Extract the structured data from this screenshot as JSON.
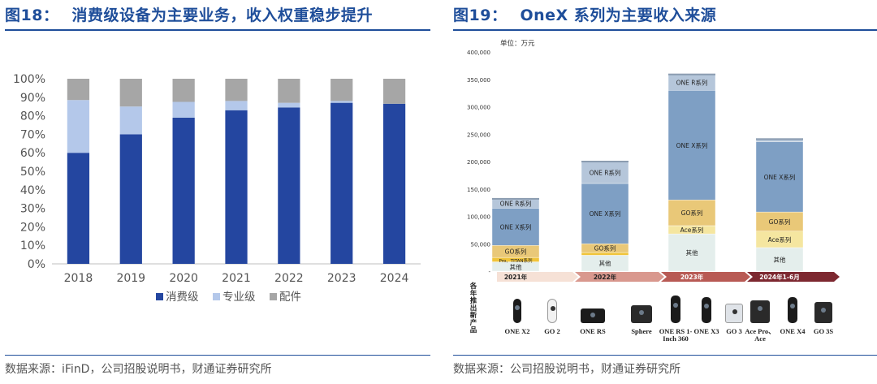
{
  "left": {
    "fig_num": "图18：",
    "title": "消费级设备为主要业务，收入权重稳步提升",
    "source": "数据来源：iFinD，公司招股说明书，财通证券研究所"
  },
  "right": {
    "fig_num": "图19：",
    "title": "OneX 系列为主要收入来源",
    "source": "数据来源：公司招股说明书，财通证券研究所",
    "unit_label": "单位：万元",
    "new_products_label": "各年推出新产品",
    "products": [
      {
        "name": "ONE X2",
        "icon": "camera-one-x2-icon"
      },
      {
        "name": "GO 2",
        "icon": "camera-go2-icon"
      },
      {
        "name": "ONE RS",
        "icon": "camera-one-rs-icon"
      },
      {
        "name": "Sphere",
        "icon": "camera-sphere-icon"
      },
      {
        "name": "ONE RS 1-Inch 360",
        "icon": "camera-one-rs-1inch-icon"
      },
      {
        "name": "ONE X3",
        "icon": "camera-one-x3-icon"
      },
      {
        "name": "GO 3",
        "icon": "camera-go3-icon"
      },
      {
        "name": "Ace Pro、Ace",
        "icon": "camera-ace-pro-icon"
      },
      {
        "name": "ONE X4",
        "icon": "camera-one-x4-icon"
      },
      {
        "name": "GO 3S",
        "icon": "camera-go3s-icon"
      }
    ]
  },
  "chart_data": [
    {
      "type": "bar",
      "stacked": true,
      "categories": [
        "2018",
        "2019",
        "2020",
        "2021",
        "2022",
        "2023",
        "2024"
      ],
      "series": [
        {
          "name": "消费级",
          "color": "#2446a0",
          "values": [
            0.6,
            0.7,
            0.79,
            0.83,
            0.845,
            0.87,
            0.865
          ]
        },
        {
          "name": "专业级",
          "color": "#b4c8ea",
          "values": [
            0.285,
            0.15,
            0.085,
            0.05,
            0.025,
            0.01,
            0.0
          ]
        },
        {
          "name": "配件",
          "color": "#a6a6a6",
          "values": [
            0.115,
            0.15,
            0.125,
            0.12,
            0.13,
            0.12,
            0.135
          ]
        }
      ],
      "yticks": [
        "0%",
        "10%",
        "20%",
        "30%",
        "40%",
        "50%",
        "60%",
        "70%",
        "80%",
        "90%",
        "100%"
      ],
      "ylim": [
        0,
        1
      ],
      "legend": "bottom"
    },
    {
      "type": "bar",
      "stacked": true,
      "categories": [
        "2021年",
        "2022年",
        "2023年",
        "2024年1-6月"
      ],
      "series": [
        {
          "name": "其他",
          "color": "#e4eeec",
          "values": [
            17000,
            29000,
            68000,
            43000
          ]
        },
        {
          "name": "Pro、TITAN系列",
          "color": "#f0c43a",
          "values": [
            8000,
            5000,
            0,
            0
          ]
        },
        {
          "name": "Ace系列",
          "color": "#f5e6a0",
          "values": [
            0,
            0,
            15000,
            30000
          ]
        },
        {
          "name": "GO系列",
          "color": "#e9c878",
          "values": [
            22000,
            16000,
            47000,
            35000
          ]
        },
        {
          "name": "ONE X系列",
          "color": "#7e9fc4",
          "values": [
            68000,
            110000,
            200000,
            128000
          ]
        },
        {
          "name": "ONE R系列",
          "color": "#b5c6da",
          "values": [
            17000,
            40000,
            29000,
            5000
          ]
        }
      ],
      "yticks": [
        "-",
        "50,000",
        "100,000",
        "150,000",
        "200,000",
        "250,000",
        "300,000",
        "350,000",
        "400,000"
      ],
      "ylim": [
        0,
        400000
      ]
    }
  ]
}
